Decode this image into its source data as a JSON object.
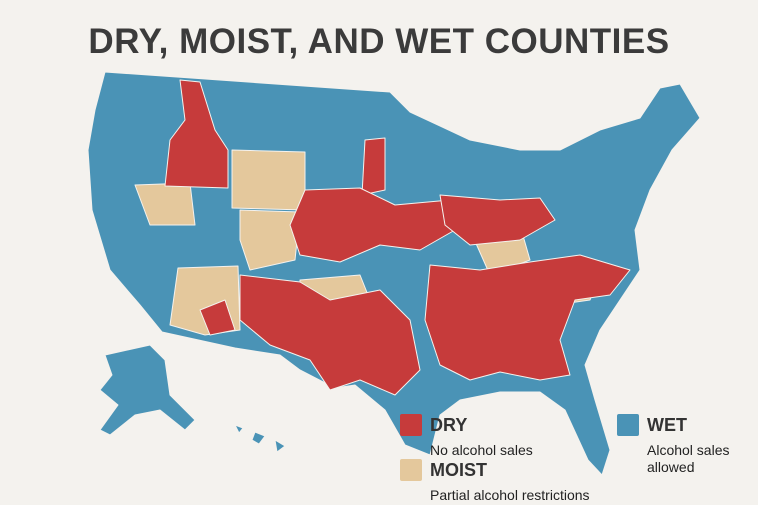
{
  "title": "DRY, MOIST, AND WET COUNTIES",
  "legend": [
    {
      "label": "DRY",
      "description": "No alcohol sales",
      "color": "#c63b3b"
    },
    {
      "label": "MOIST",
      "description": "Partial alcohol restrictions",
      "color": "#e4c89c"
    },
    {
      "label": "WET",
      "description": "Alcohol sales allowed",
      "color": "#4a93b6"
    }
  ]
}
